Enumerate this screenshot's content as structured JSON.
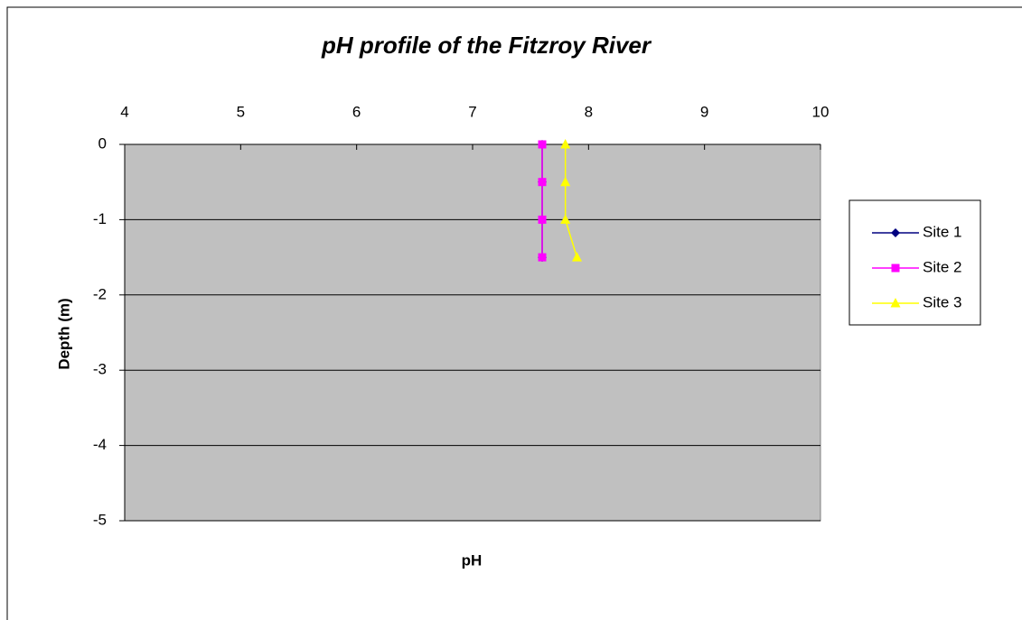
{
  "chart_data": {
    "type": "scatter",
    "title": "pH profile of the Fitzroy River",
    "xlabel": "pH",
    "ylabel": "Depth (m)",
    "xlim": [
      4,
      10
    ],
    "xticks": [
      4,
      5,
      6,
      7,
      8,
      9,
      10
    ],
    "ylim": [
      -5,
      0
    ],
    "yticks": [
      0,
      -1,
      -2,
      -3,
      -4,
      -5
    ],
    "grid": true,
    "legend": "right",
    "series": [
      {
        "name": "Site 1",
        "color": "#000080",
        "marker": "diamond",
        "x": [
          7.6,
          7.6,
          7.6,
          7.6
        ],
        "values": [
          0,
          -0.5,
          -1,
          -1.5
        ]
      },
      {
        "name": "Site 2",
        "color": "#ff00ff",
        "marker": "square",
        "x": [
          7.6,
          7.6,
          7.6,
          7.6
        ],
        "values": [
          0,
          -0.5,
          -1,
          -1.5
        ]
      },
      {
        "name": "Site 3",
        "color": "#ffff00",
        "marker": "triangle",
        "x": [
          7.8,
          7.8,
          7.8,
          7.9
        ],
        "values": [
          0,
          -0.5,
          -1,
          -1.5
        ]
      }
    ]
  }
}
